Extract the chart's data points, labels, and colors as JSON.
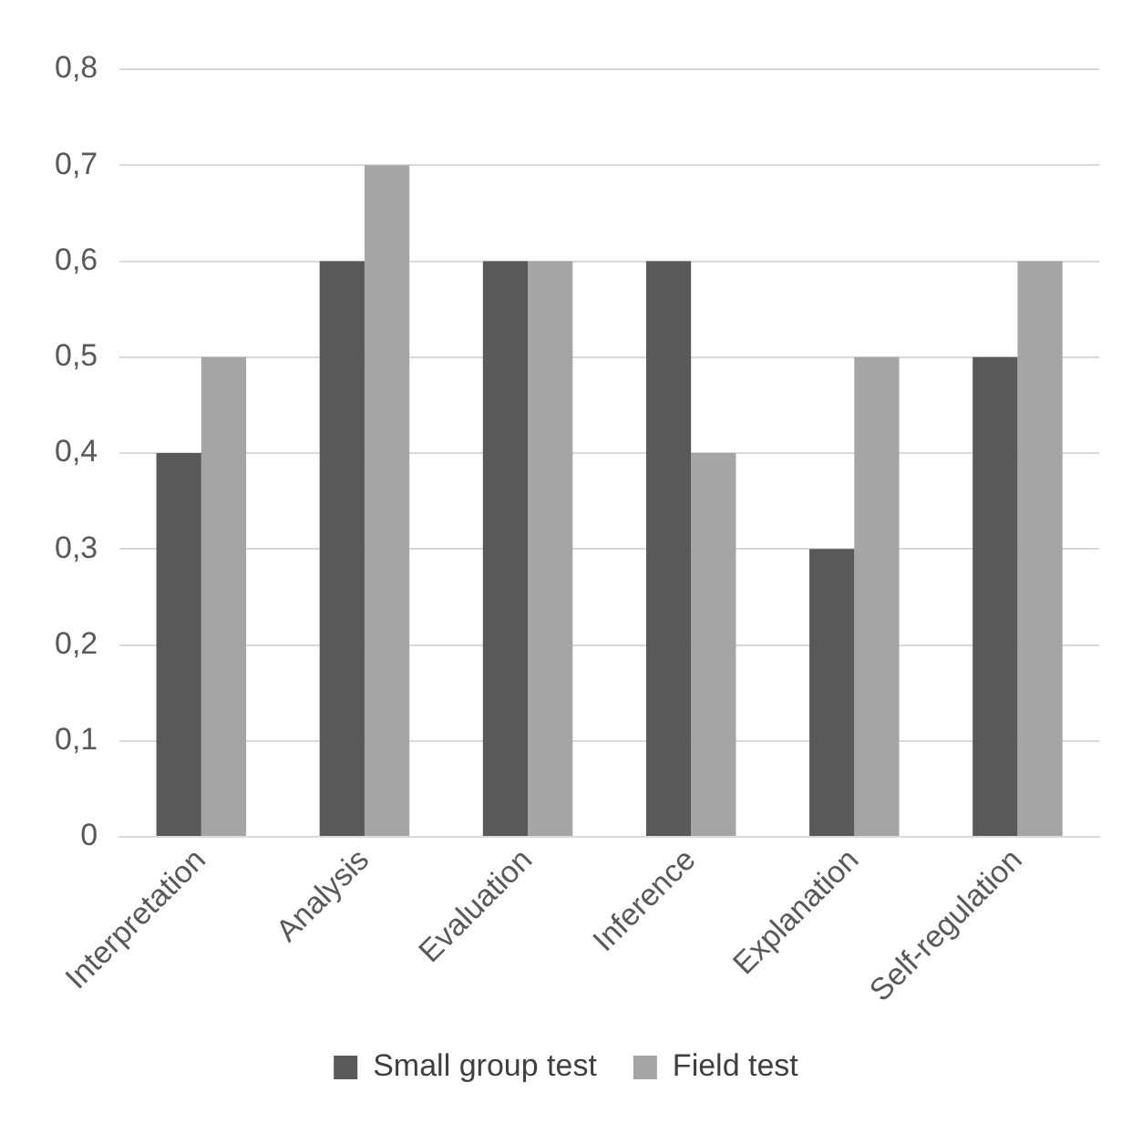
{
  "chart_data": {
    "type": "bar",
    "categories": [
      "Interpretation",
      "Analysis",
      "Evaluation",
      "Inference",
      "Explanation",
      "Self-regulation"
    ],
    "series": [
      {
        "name": "Small group test",
        "color": "#595959",
        "values": [
          0.4,
          0.6,
          0.6,
          0.6,
          0.3,
          0.5
        ]
      },
      {
        "name": "Field test",
        "color": "#a5a5a5",
        "values": [
          0.5,
          0.7,
          0.6,
          0.4,
          0.5,
          0.6
        ]
      }
    ],
    "ylim": [
      0,
      0.8
    ],
    "yticks": [
      0,
      {
        "value": 0.1,
        "label": "0,1"
      },
      {
        "value": 0.2,
        "label": "0,2"
      },
      {
        "value": 0.3,
        "label": "0,3"
      },
      {
        "value": 0.4,
        "label": "0,4"
      },
      {
        "value": 0.5,
        "label": "0,5"
      },
      {
        "value": 0.6,
        "label": "0,6"
      },
      {
        "value": 0.7,
        "label": "0,7"
      },
      {
        "value": 0.8,
        "label": "0,8"
      }
    ],
    "grid": "y",
    "legend": "bottom"
  }
}
